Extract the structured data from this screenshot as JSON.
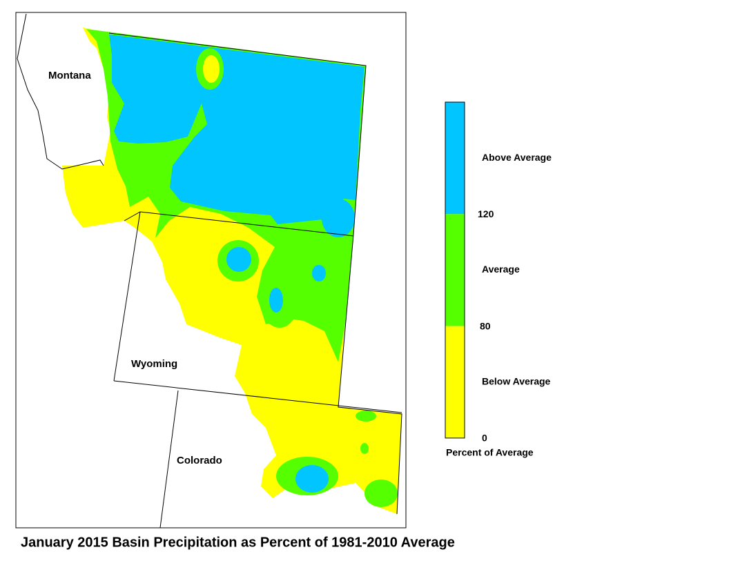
{
  "title": "January 2015 Basin Precipitation as Percent of 1981-2010 Average",
  "states": [
    {
      "label": "Montana"
    },
    {
      "label": "Wyoming"
    },
    {
      "label": "Colorado"
    }
  ],
  "legend": {
    "title": "Percent of Average",
    "classes": [
      {
        "label": "Above Average",
        "color": "#00c5ff"
      },
      {
        "label": "Average",
        "color": "#55ff00"
      },
      {
        "label": "Below Average",
        "color": "#ffff00"
      }
    ],
    "ticks": [
      120,
      80,
      0
    ]
  }
}
